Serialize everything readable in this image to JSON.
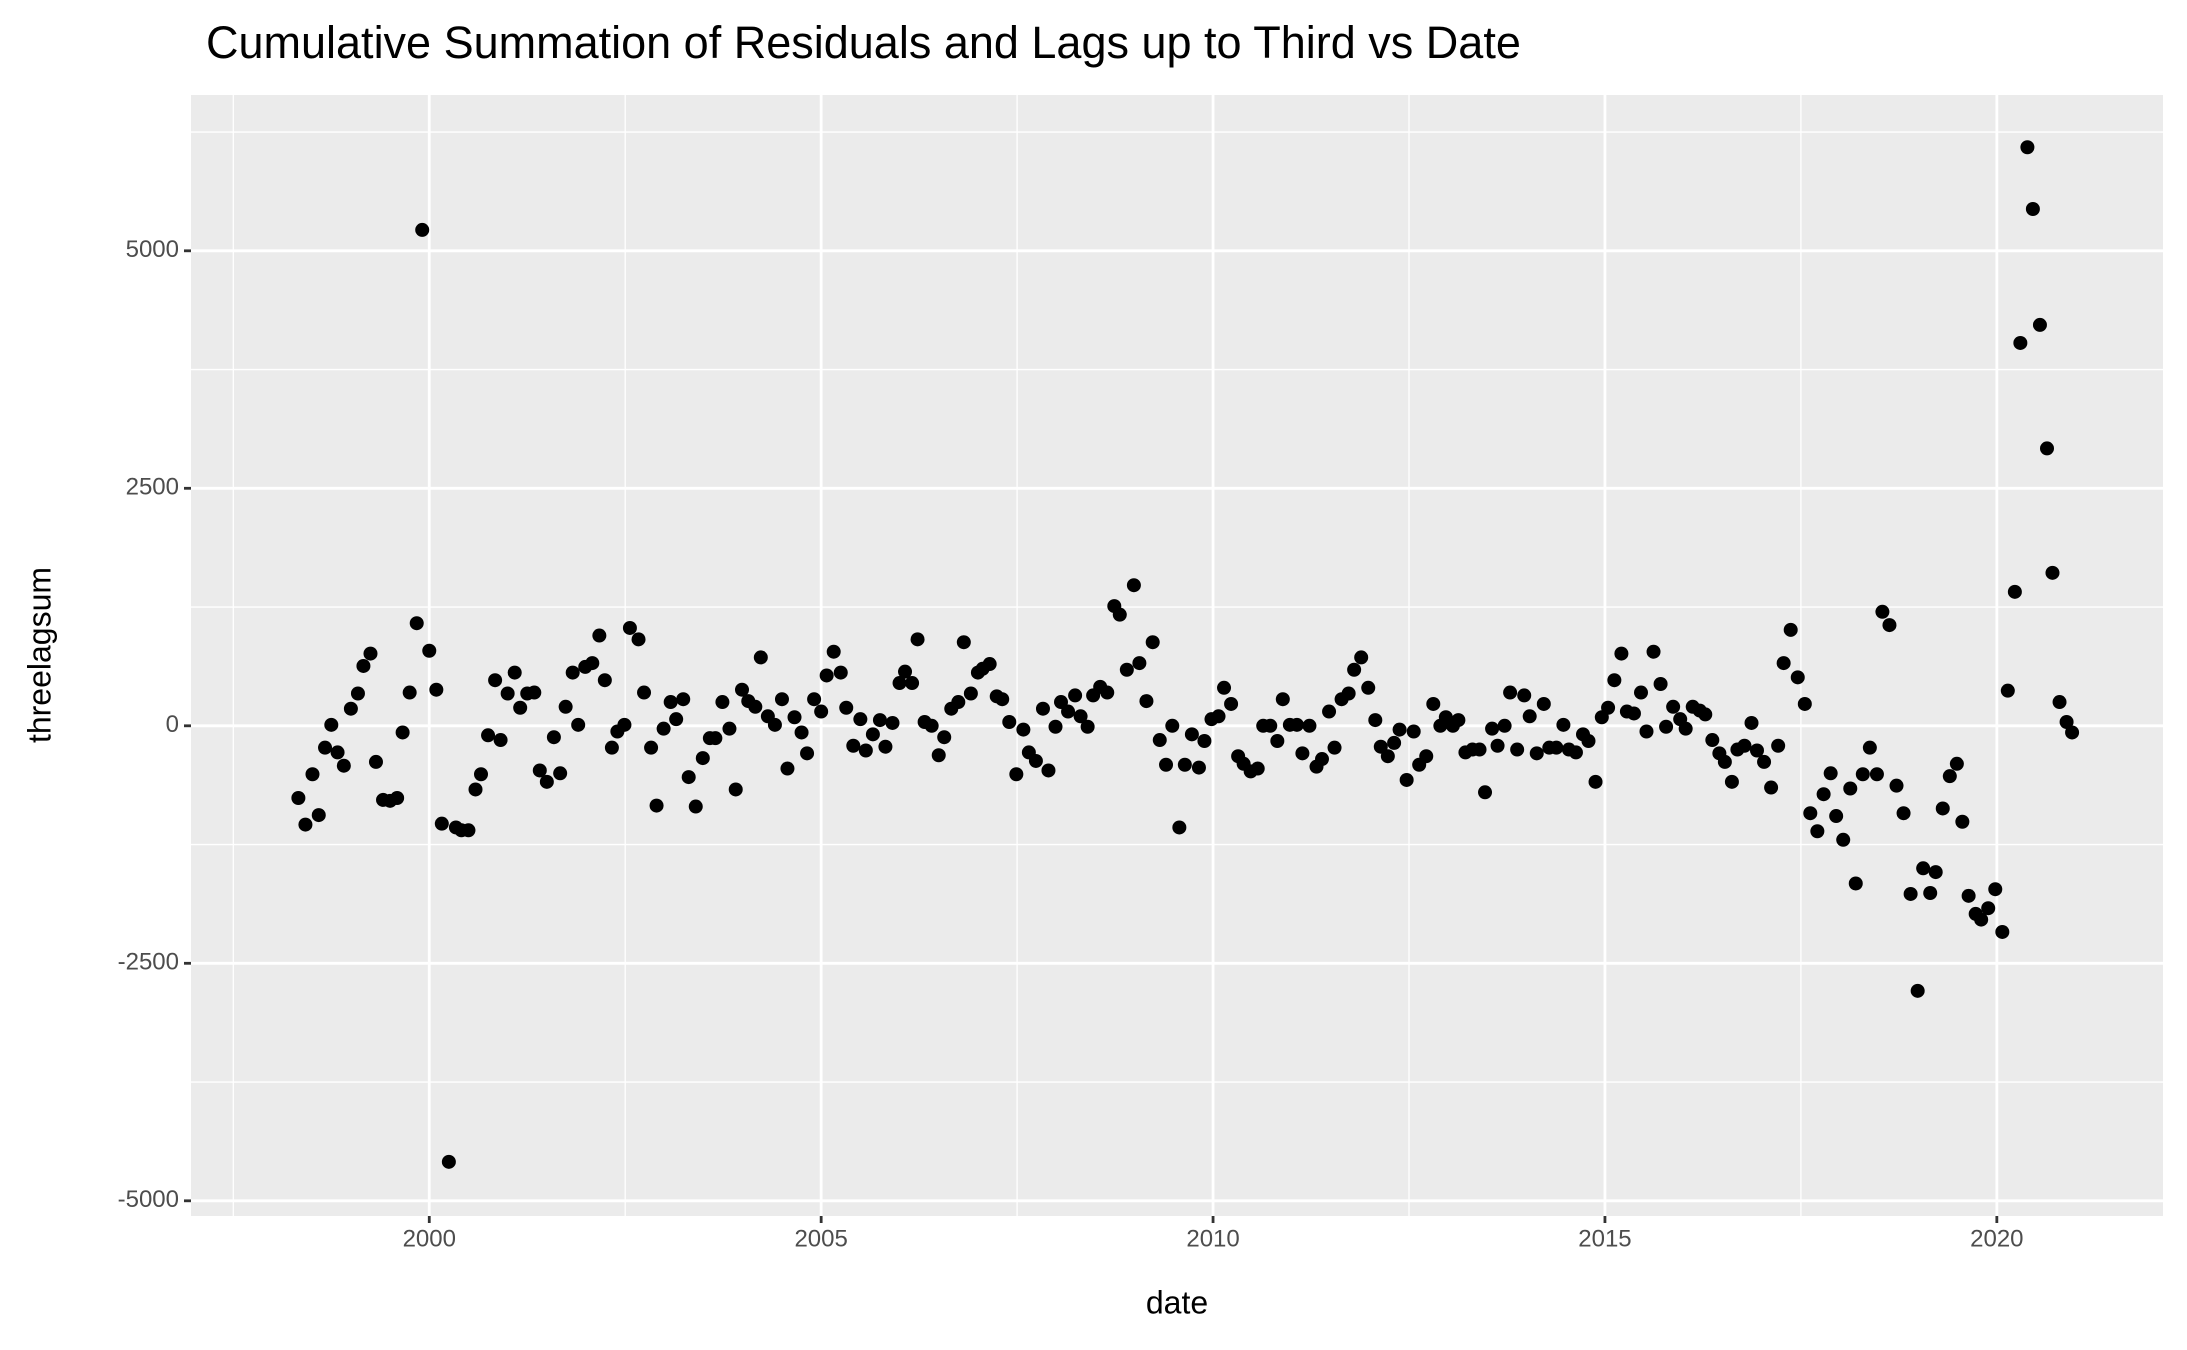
{
  "chart_data": {
    "type": "scatter",
    "title": "Cumulative Summation of Residuals and Lags up to Third vs Date",
    "x_label": "date",
    "y_label": "threelagsum",
    "color": "#000000",
    "grid": true,
    "xlim": [
      1996.96,
      2022.12
    ],
    "ylim": [
      -5160,
      6640
    ],
    "xticks": [
      2000,
      2005,
      2010,
      2015,
      2020
    ],
    "yticks": [
      -5000,
      -2500,
      0,
      2500,
      5000
    ],
    "x": [
      1998.33,
      1998.42,
      1998.51,
      1998.59,
      1998.67,
      1998.75,
      1998.83,
      1998.91,
      1999.0,
      1999.09,
      1999.16,
      1999.25,
      1999.32,
      1999.41,
      1999.5,
      1999.59,
      1999.66,
      1999.75,
      1999.84,
      1999.91,
      2000.0,
      2000.09,
      2000.16,
      2000.25,
      2000.34,
      2000.41,
      2000.5,
      2000.59,
      2000.66,
      2000.75,
      2000.84,
      2000.91,
      2001.0,
      2001.09,
      2001.16,
      2001.25,
      2001.34,
      2001.41,
      2001.5,
      2001.59,
      2001.67,
      2001.74,
      2001.83,
      2001.9,
      2001.99,
      2002.08,
      2002.17,
      2002.24,
      2002.33,
      2002.4,
      2002.49,
      2002.56,
      2002.67,
      2002.74,
      2002.83,
      2002.9,
      2002.99,
      2003.08,
      2003.15,
      2003.24,
      2003.31,
      2003.4,
      2003.49,
      2003.58,
      2003.65,
      2003.74,
      2003.83,
      2003.91,
      2003.99,
      2004.07,
      2004.16,
      2004.23,
      2004.32,
      2004.41,
      2004.5,
      2004.57,
      2004.66,
      2004.75,
      2004.82,
      2004.91,
      2005.0,
      2005.07,
      2005.16,
      2005.25,
      2005.32,
      2005.41,
      2005.5,
      2005.57,
      2005.66,
      2005.75,
      2005.82,
      2005.91,
      2006.0,
      2006.07,
      2006.16,
      2006.23,
      2006.32,
      2006.41,
      2006.5,
      2006.57,
      2006.66,
      2006.75,
      2006.82,
      2006.91,
      2007.0,
      2007.06,
      2007.15,
      2007.24,
      2007.31,
      2007.4,
      2007.49,
      2007.58,
      2007.65,
      2007.74,
      2007.83,
      2007.9,
      2007.99,
      2008.06,
      2008.15,
      2008.24,
      2008.31,
      2008.4,
      2008.47,
      2008.56,
      2008.65,
      2008.74,
      2008.81,
      2008.9,
      2008.99,
      2009.06,
      2009.15,
      2009.23,
      2009.32,
      2009.4,
      2009.48,
      2009.57,
      2009.64,
      2009.73,
      2009.82,
      2009.89,
      2009.98,
      2010.07,
      2010.14,
      2010.23,
      2010.32,
      2010.39,
      2010.48,
      2010.57,
      2010.64,
      2010.73,
      2010.82,
      2010.89,
      2010.98,
      2011.07,
      2011.14,
      2011.23,
      2011.32,
      2011.39,
      2011.48,
      2011.55,
      2011.64,
      2011.73,
      2011.8,
      2011.89,
      2011.98,
      2012.07,
      2012.14,
      2012.23,
      2012.31,
      2012.38,
      2012.47,
      2012.56,
      2012.63,
      2012.72,
      2012.81,
      2012.9,
      2012.97,
      2013.06,
      2013.13,
      2013.22,
      2013.31,
      2013.4,
      2013.47,
      2013.56,
      2013.63,
      2013.72,
      2013.79,
      2013.88,
      2013.97,
      2014.04,
      2014.13,
      2014.22,
      2014.29,
      2014.38,
      2014.47,
      2014.54,
      2014.63,
      2014.72,
      2014.79,
      2014.88,
      2014.96,
      2015.04,
      2015.12,
      2015.21,
      2015.28,
      2015.37,
      2015.46,
      2015.53,
      2015.62,
      2015.71,
      2015.78,
      2015.87,
      2015.96,
      2016.03,
      2016.12,
      2016.21,
      2016.28,
      2016.37,
      2016.46,
      2016.53,
      2016.62,
      2016.69,
      2016.78,
      2016.87,
      2016.94,
      2017.03,
      2017.12,
      2017.21,
      2017.28,
      2017.37,
      2017.46,
      2017.55,
      2017.62,
      2017.71,
      2017.79,
      2017.88,
      2017.95,
      2018.04,
      2018.13,
      2018.2,
      2018.29,
      2018.38,
      2018.47,
      2018.54,
      2018.63,
      2018.72,
      2018.81,
      2018.9,
      2018.99,
      2019.06,
      2019.15,
      2019.22,
      2019.31,
      2019.4,
      2019.49,
      2019.56,
      2019.64,
      2019.73,
      2019.8,
      2019.89,
      2019.98,
      2020.07,
      2020.14,
      2020.23,
      2020.3,
      2020.39,
      2020.46,
      2020.55,
      2020.64,
      2020.71,
      2020.8,
      2020.89,
      2020.96
    ],
    "values": [
      -760,
      -1040,
      -510,
      -940,
      -230,
      10,
      -280,
      -420,
      180,
      340,
      630,
      760,
      -380,
      -780,
      -790,
      -760,
      -70,
      350,
      1080,
      5220,
      790,
      380,
      -1030,
      -4590,
      -1070,
      -1100,
      -1100,
      -670,
      -510,
      -100,
      480,
      -150,
      340,
      560,
      190,
      340,
      350,
      -470,
      -590,
      -120,
      -500,
      200,
      560,
      10,
      620,
      660,
      950,
      480,
      -230,
      -60,
      10,
      1030,
      910,
      350,
      -230,
      -840,
      -30,
      250,
      70,
      280,
      -540,
      -850,
      -340,
      -130,
      -130,
      250,
      -30,
      -670,
      380,
      260,
      200,
      720,
      100,
      10,
      280,
      -450,
      90,
      -70,
      -290,
      280,
      150,
      530,
      780,
      560,
      190,
      -210,
      70,
      -260,
      -90,
      60,
      -220,
      30,
      450,
      570,
      450,
      910,
      40,
      0,
      -310,
      -120,
      180,
      250,
      880,
      340,
      560,
      600,
      650,
      310,
      280,
      40,
      -510,
      -40,
      -280,
      -370,
      180,
      -470,
      -10,
      250,
      150,
      320,
      100,
      -10,
      320,
      410,
      350,
      1260,
      1170,
      590,
      1480,
      660,
      260,
      880,
      -150,
      -410,
      0,
      -1070,
      -410,
      -90,
      -440,
      -160,
      70,
      100,
      400,
      230,
      -320,
      -400,
      -480,
      -450,
      0,
      0,
      -160,
      280,
      10,
      10,
      -290,
      0,
      -430,
      -350,
      150,
      -230,
      280,
      340,
      590,
      720,
      400,
      60,
      -220,
      -320,
      -180,
      -40,
      -570,
      -60,
      -410,
      -320,
      230,
      0,
      90,
      0,
      60,
      -280,
      -250,
      -250,
      -700,
      -30,
      -210,
      0,
      350,
      -250,
      320,
      100,
      -290,
      230,
      -230,
      -230,
      10,
      -250,
      -280,
      -90,
      -160,
      -590,
      90,
      190,
      480,
      760,
      150,
      130,
      350,
      -60,
      780,
      440,
      -10,
      200,
      70,
      -30,
      200,
      160,
      120,
      -150,
      -290,
      -380,
      -590,
      -250,
      -210,
      30,
      -260,
      -380,
      -650,
      -210,
      660,
      1010,
      510,
      230,
      -920,
      -1110,
      -720,
      -500,
      -950,
      -1200,
      -660,
      -1660,
      -510,
      -230,
      -510,
      1200,
      1060,
      -630,
      -920,
      -1770,
      -2790,
      -1500,
      -1760,
      -1540,
      -870,
      -530,
      -400,
      -1010,
      -1790,
      -1980,
      -2040,
      -1920,
      -1720,
      -2170,
      370,
      1410,
      4030,
      6090,
      5440,
      4220,
      2920,
      1610,
      250,
      40,
      -70
    ]
  }
}
